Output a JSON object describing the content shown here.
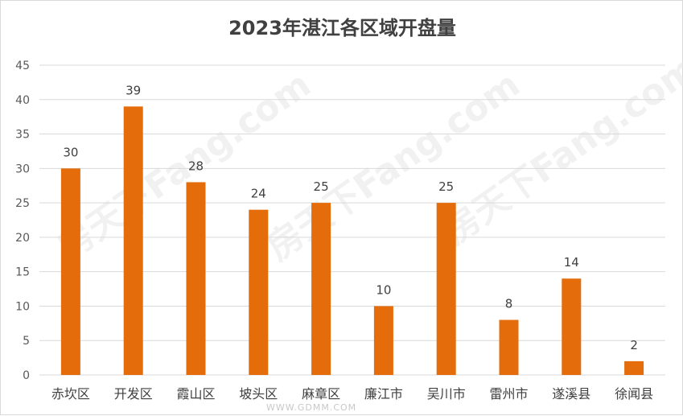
{
  "chart_data": {
    "type": "bar",
    "title": "2023年湛江各区域开盘量",
    "categories": [
      "赤坎区",
      "开发区",
      "霞山区",
      "坡头区",
      "麻章区",
      "廉江市",
      "吴川市",
      "雷州市",
      "遂溪县",
      "徐闻县"
    ],
    "values": [
      30,
      39,
      28,
      24,
      25,
      10,
      25,
      8,
      14,
      2
    ],
    "ylim": [
      0,
      45
    ],
    "yticks": [
      0,
      5,
      10,
      15,
      20,
      25,
      30,
      35,
      40,
      45
    ],
    "grid": true,
    "colors": {
      "bar": "#E46C0A",
      "grid": "#d9d9d9",
      "text": "#404040"
    }
  },
  "watermarks": {
    "diagonal": [
      "房天下Fang.com",
      "房天下Fang.com",
      "房天下Fang.com"
    ],
    "bottom": "WWW.GDMM.COM"
  }
}
